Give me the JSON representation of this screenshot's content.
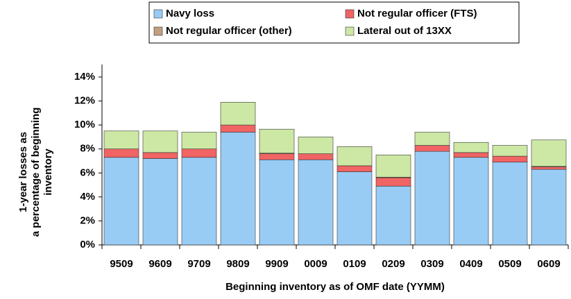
{
  "chart_data": {
    "type": "stacked_bar",
    "x_label": "Beginning inventory as of OMF date (YYMM)",
    "y_label": "1-year losses as a percentage of beginning inventory",
    "categories": [
      "9509",
      "9609",
      "9709",
      "9809",
      "9909",
      "0009",
      "0109",
      "0209",
      "0309",
      "0409",
      "0509",
      "0609"
    ],
    "series": [
      {
        "name": "Navy loss",
        "color": "#99ccf5",
        "values": [
          7.3,
          7.2,
          7.3,
          9.4,
          7.1,
          7.1,
          6.1,
          4.9,
          7.8,
          7.3,
          6.9,
          6.3
        ]
      },
      {
        "name": "Not regular officer (FTS)",
        "color": "#f06464",
        "values": [
          0.7,
          0.5,
          0.7,
          0.6,
          0.5,
          0.5,
          0.5,
          0.7,
          0.5,
          0.4,
          0.5,
          0.2
        ]
      },
      {
        "name": "Not regular officer (other)",
        "color": "#c0a080",
        "values": [
          0,
          0,
          0,
          0,
          0.05,
          0,
          0,
          0.05,
          0,
          0,
          0,
          0.05
        ]
      },
      {
        "name": "Lateral out of 13XX",
        "color": "#cce8a4",
        "values": [
          1.5,
          1.8,
          1.4,
          1.9,
          2.0,
          1.4,
          1.6,
          1.85,
          1.1,
          0.85,
          0.9,
          2.2
        ]
      }
    ],
    "ylim": [
      0,
      14
    ],
    "yticks": [
      {
        "value": 0,
        "label": "0%"
      },
      {
        "value": 2,
        "label": "2%"
      },
      {
        "value": 4,
        "label": "4%"
      },
      {
        "value": 6,
        "label": "6%"
      },
      {
        "value": 8,
        "label": "8%"
      },
      {
        "value": 10,
        "label": "10%"
      },
      {
        "value": 12,
        "label": "12%"
      },
      {
        "value": 14,
        "label": "14%"
      }
    ],
    "legend": "top"
  }
}
